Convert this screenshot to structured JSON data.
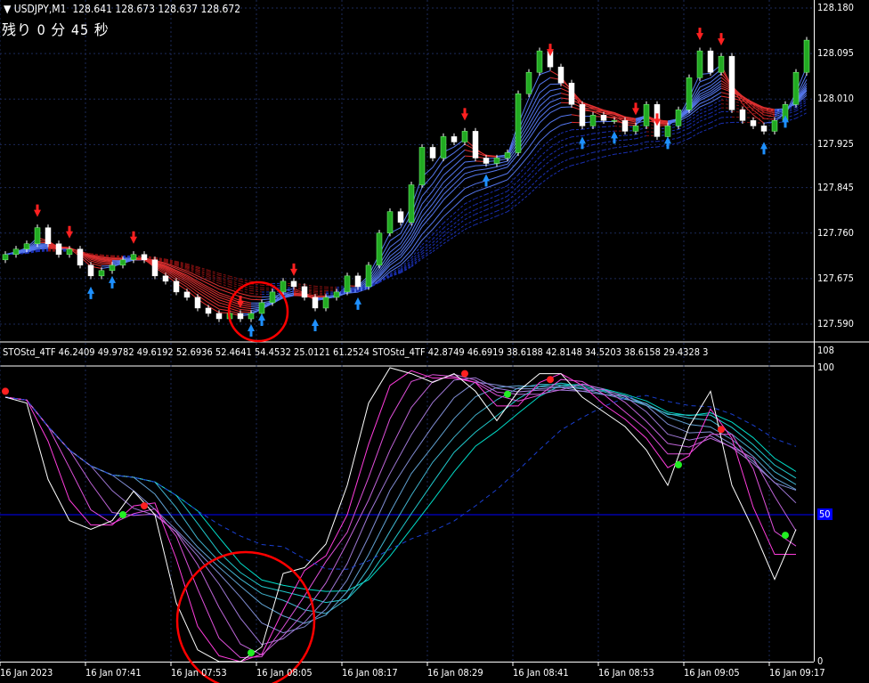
{
  "header": {
    "symbol": "USDJPY,M1",
    "ohlc": "128.641 128.673 128.637 128.672",
    "timer": "残り 0 分 45 秒"
  },
  "indicator": {
    "label": "STOStd_4TF 46.2409 49.9782 49.6192 52.6936 52.4641 54.4532 25.0121 61.2524  STOStd_4TF 42.8749 46.6919 38.6188 42.8148 34.5203 38.6158 29.4328 3"
  },
  "colors": {
    "bull": "#22aa22",
    "bear": "#ffffff",
    "up_arrow": "#1e90ff",
    "down_arrow": "#ff2020",
    "level50": "#0000ff",
    "circle": "#ff0000"
  },
  "chart_data": [
    {
      "type": "candlestick",
      "symbol": "USDJPY",
      "timeframe": "M1",
      "y_ticks": [
        "128.180",
        "128.095",
        "128.010",
        "127.925",
        "127.845",
        "127.760",
        "127.675",
        "127.590"
      ],
      "ylim": [
        127.575,
        128.19
      ],
      "x_ticks": [
        "16 Jan 2023",
        "16 Jan 07:41",
        "16 Jan 07:53",
        "16 Jan 08:05",
        "16 Jan 08:17",
        "16 Jan 08:29",
        "16 Jan 08:41",
        "16 Jan 08:53",
        "16 Jan 09:05",
        "16 Jan 09:17"
      ],
      "close": [
        127.72,
        127.73,
        127.74,
        127.77,
        127.74,
        127.72,
        127.73,
        127.7,
        127.68,
        127.69,
        127.7,
        127.71,
        127.72,
        127.71,
        127.68,
        127.67,
        127.65,
        127.64,
        127.62,
        127.61,
        127.6,
        127.61,
        127.6,
        127.61,
        127.63,
        127.65,
        127.67,
        127.66,
        127.64,
        127.62,
        127.64,
        127.65,
        127.68,
        127.66,
        127.7,
        127.76,
        127.8,
        127.78,
        127.85,
        127.92,
        127.9,
        127.94,
        127.93,
        127.95,
        127.9,
        127.89,
        127.9,
        127.91,
        128.02,
        128.06,
        128.1,
        128.07,
        128.04,
        128.0,
        127.96,
        127.98,
        127.97,
        127.97,
        127.95,
        127.96,
        128.0,
        127.94,
        127.96,
        127.99,
        128.05,
        128.1,
        128.06,
        128.09,
        127.99,
        127.97,
        127.96,
        127.95,
        127.97,
        128.0,
        128.06,
        128.12
      ],
      "sell_signals": [
        3,
        6,
        12,
        22,
        27,
        43,
        51,
        59,
        61,
        65,
        67
      ],
      "buy_signals": [
        8,
        10,
        23,
        24,
        29,
        33,
        45,
        54,
        57,
        62,
        71,
        73
      ]
    },
    {
      "type": "line",
      "name": "STOStd_4TF",
      "ylim": [
        0,
        100
      ],
      "y_ticks": [
        "108",
        "100",
        "50",
        "0"
      ],
      "values": [
        90,
        88,
        62,
        48,
        45,
        48,
        58,
        50,
        20,
        4,
        0,
        0,
        5,
        30,
        32,
        40,
        60,
        88,
        100,
        98,
        95,
        98,
        92,
        82,
        92,
        98,
        98,
        90,
        85,
        80,
        72,
        60,
        80,
        92,
        60,
        45,
        28,
        45
      ],
      "red_dots": [
        [
          0,
          92
        ],
        [
          13,
          53
        ],
        [
          43,
          98
        ],
        [
          51,
          96
        ],
        [
          67,
          79
        ]
      ],
      "green_dots": [
        [
          11,
          50
        ],
        [
          47,
          91
        ],
        [
          23,
          3
        ],
        [
          63,
          67
        ],
        [
          73,
          43
        ]
      ]
    }
  ]
}
